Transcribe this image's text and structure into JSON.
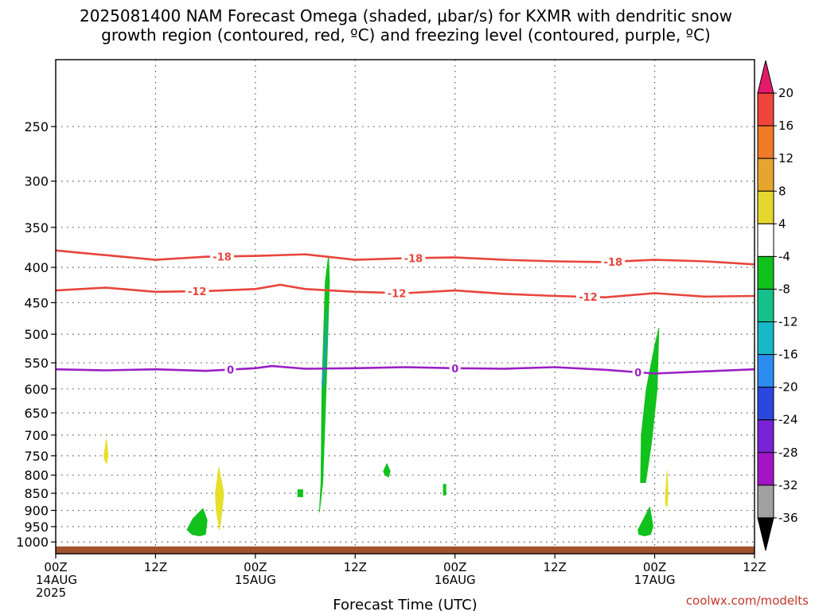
{
  "title_line1": "2025081400 NAM Forecast Omega (shaded, μbar/s) for KXMR with dendritic snow",
  "title_line2": "growth region (contoured, red, ºC) and freezing level (contoured, purple, ºC)",
  "credit": "coolwx.com/modelts",
  "chart_data": {
    "type": "time-height",
    "xlabel": "Forecast Time (UTC)",
    "ylabel": "",
    "y_scale": "log",
    "y_reversed": true,
    "ylim": [
      200,
      1040
    ],
    "xlim": [
      0,
      84
    ],
    "grid": true,
    "y_ticks": [
      250,
      300,
      350,
      400,
      450,
      500,
      550,
      600,
      650,
      700,
      750,
      800,
      850,
      900,
      950,
      1000
    ],
    "x_ticks": [
      {
        "hour": 0,
        "labels": [
          "00Z",
          "14AUG",
          "2025"
        ]
      },
      {
        "hour": 12,
        "labels": [
          "12Z"
        ]
      },
      {
        "hour": 24,
        "labels": [
          "00Z",
          "15AUG"
        ]
      },
      {
        "hour": 36,
        "labels": [
          "12Z"
        ]
      },
      {
        "hour": 48,
        "labels": [
          "00Z",
          "16AUG"
        ]
      },
      {
        "hour": 60,
        "labels": [
          "12Z"
        ]
      },
      {
        "hour": 72,
        "labels": [
          "00Z",
          "17AUG"
        ]
      },
      {
        "hour": 84,
        "labels": [
          "12Z"
        ]
      }
    ],
    "contours": [
      {
        "level": "-18",
        "label": "-18",
        "color": "#e8453c",
        "hours": [
          0,
          6,
          12,
          18,
          24,
          30,
          36,
          42,
          48,
          54,
          60,
          66,
          72,
          78,
          84
        ],
        "pressure": [
          378,
          384,
          390,
          386,
          385,
          383,
          390,
          388,
          387,
          390,
          392,
          393,
          390,
          392,
          396
        ],
        "label_hours": [
          20,
          43,
          67
        ]
      },
      {
        "level": "-12",
        "label": "-12",
        "color": "#e8453c",
        "hours": [
          0,
          6,
          12,
          18,
          24,
          27,
          30,
          36,
          42,
          48,
          54,
          60,
          66,
          72,
          78,
          84
        ],
        "pressure": [
          432,
          428,
          434,
          433,
          430,
          424,
          430,
          434,
          436,
          432,
          437,
          440,
          442,
          436,
          441,
          440
        ],
        "label_hours": [
          17,
          41,
          64
        ]
      },
      {
        "level": "0",
        "label": "0",
        "color": "#9b1fc4",
        "hours": [
          0,
          6,
          12,
          18,
          24,
          26,
          30,
          36,
          42,
          48,
          54,
          60,
          66,
          72,
          78,
          84
        ],
        "pressure": [
          562,
          564,
          562,
          565,
          560,
          556,
          561,
          560,
          558,
          560,
          561,
          558,
          563,
          570,
          566,
          562
        ],
        "label_hours": [
          21,
          48,
          70
        ]
      }
    ],
    "shaded": [
      {
        "name": "omega -6",
        "color": "#11c11c",
        "hours": [
          31.7,
          32.1,
          32.5,
          32.9,
          32.8,
          32.4,
          32.0,
          31.9
        ],
        "pressure": [
          905,
          820,
          600,
          420,
          385,
          420,
          600,
          820
        ]
      },
      {
        "name": "omega -10",
        "color": "#16a996",
        "hours": [
          32.0,
          32.3,
          32.6,
          32.6,
          32.2
        ],
        "pressure": [
          590,
          520,
          460,
          520,
          600
        ]
      },
      {
        "name": "omega -6",
        "color": "#11c11c",
        "hours": [
          70.3,
          70.4,
          71.0,
          72.0,
          72.5,
          72.3,
          71.6,
          70.9
        ],
        "pressure": [
          820,
          700,
          600,
          520,
          490,
          600,
          720,
          820
        ]
      },
      {
        "name": "omega -6",
        "color": "#11c11c",
        "hours": [
          15.8,
          16.5,
          17.7,
          18.2,
          18.0,
          17.3,
          16.4
        ],
        "pressure": [
          960,
          925,
          895,
          930,
          975,
          980,
          975
        ]
      },
      {
        "name": "omega -6",
        "color": "#11c11c",
        "hours": [
          70.0,
          70.7,
          71.4,
          71.8,
          71.5,
          70.8,
          70.1
        ],
        "pressure": [
          960,
          925,
          890,
          950,
          975,
          980,
          975
        ]
      },
      {
        "name": "omega -6",
        "color": "#11c11c",
        "hours": [
          39.4,
          39.8,
          40.2,
          40.0,
          39.6
        ],
        "pressure": [
          790,
          770,
          790,
          805,
          800
        ]
      },
      {
        "name": "omega -6",
        "color": "#11c11c",
        "hours": [
          29.1,
          29.7,
          29.7,
          29.1
        ],
        "pressure": [
          840,
          840,
          860,
          860
        ]
      },
      {
        "name": "omega -6",
        "color": "#11c11c",
        "hours": [
          46.6,
          46.9,
          46.9,
          46.6
        ],
        "pressure": [
          825,
          825,
          855,
          855
        ]
      },
      {
        "name": "omega +6",
        "color": "#e6e02a",
        "hours": [
          5.8,
          6.1,
          6.3,
          6.1,
          5.9
        ],
        "pressure": [
          750,
          710,
          750,
          770,
          760
        ]
      },
      {
        "name": "omega +6",
        "color": "#e6e02a",
        "hours": [
          19.2,
          19.6,
          20.2,
          20.0,
          19.7,
          19.3
        ],
        "pressure": [
          850,
          780,
          850,
          900,
          960,
          900
        ]
      },
      {
        "name": "omega +6",
        "color": "#e6e02a",
        "hours": [
          73.3,
          73.5,
          73.6,
          73.5,
          73.3
        ],
        "pressure": [
          850,
          790,
          850,
          890,
          880
        ]
      }
    ],
    "terrain_color": "#a0522d",
    "colorbar": {
      "labels": [
        "20",
        "16",
        "12",
        "8",
        "4",
        "-4",
        "-8",
        "-12",
        "-16",
        "-20",
        "-24",
        "-28",
        "-32",
        "-36"
      ],
      "colors": [
        "#e31a6a",
        "#f0453a",
        "#f07a28",
        "#e6a52e",
        "#e6d72e",
        "#ffffff",
        "#11c11c",
        "#16c08a",
        "#17b8c8",
        "#2c8cf0",
        "#2a48e0",
        "#7a22d8",
        "#a214c6",
        "#a0a0a0",
        "#000000"
      ]
    }
  }
}
